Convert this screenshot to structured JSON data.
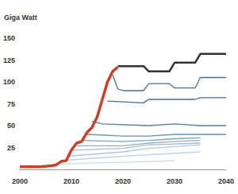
{
  "chart_data": {
    "type": "line",
    "y_label": "Giga Watt",
    "xlim": [
      2000,
      2040
    ],
    "xticks": [
      2000,
      2010,
      2020,
      2030,
      2040
    ],
    "ylim": [
      0,
      150
    ],
    "yticks": [
      25,
      50,
      75,
      100,
      125,
      150
    ],
    "grid": false,
    "series": [
      {
        "color": "#ccdcea",
        "x": [
          2007,
          2020,
          2030
        ],
        "values": [
          6,
          8,
          10
        ]
      },
      {
        "color": "#c0d4e6",
        "x": [
          2008,
          2020,
          2035
        ],
        "values": [
          10,
          15,
          20
        ]
      },
      {
        "color": "#b0c8df",
        "x": [
          2009,
          2020,
          2025,
          2035
        ],
        "values": [
          15,
          20,
          24,
          28
        ]
      },
      {
        "color": "#a0bcd6",
        "x": [
          2010,
          2020,
          2025,
          2035
        ],
        "values": [
          22,
          24,
          28,
          30
        ]
      },
      {
        "color": "#8fafcc",
        "x": [
          2011,
          2020,
          2025,
          2030,
          2035
        ],
        "values": [
          27,
          27,
          30,
          32,
          33
        ]
      },
      {
        "color": "#7f9fbf",
        "x": [
          2012,
          2020,
          2025,
          2030,
          2035
        ],
        "values": [
          33,
          32,
          33,
          35,
          36
        ]
      },
      {
        "color": "#6d8fb0",
        "x": [
          2013,
          2020,
          2025,
          2030,
          2040
        ],
        "values": [
          40,
          38,
          38,
          40,
          40
        ]
      },
      {
        "color": "#5b7fa0",
        "x": [
          2014,
          2016,
          2025,
          2030,
          2035,
          2040
        ],
        "values": [
          55,
          52,
          50,
          52,
          50,
          50
        ]
      },
      {
        "color": "#4a6f8f",
        "x": [
          2017,
          2024,
          2025,
          2034,
          2035,
          2040
        ],
        "values": [
          78,
          76,
          80,
          80,
          82,
          82
        ]
      },
      {
        "color": "#4a6f8f",
        "x": [
          2018,
          2019,
          2020,
          2024,
          2025,
          2029,
          2030,
          2034,
          2035,
          2040
        ],
        "values": [
          108,
          92,
          90,
          90,
          98,
          98,
          93,
          93,
          105,
          105
        ]
      },
      {
        "color": "#333333",
        "x": [
          2019,
          2024,
          2025,
          2029,
          2030,
          2034,
          2035,
          2040
        ],
        "values": [
          118,
          118,
          112,
          112,
          122,
          122,
          132,
          132
        ]
      },
      {
        "color": "#c8412b",
        "x": [
          2000,
          2002,
          2004,
          2006,
          2007,
          2008,
          2009,
          2010,
          2011,
          2012,
          2013,
          2014,
          2015,
          2016,
          2017,
          2018,
          2019
        ],
        "values": [
          3,
          3,
          3,
          4,
          5,
          9,
          10,
          22,
          30,
          32,
          42,
          48,
          60,
          80,
          100,
          112,
          117
        ]
      }
    ]
  }
}
